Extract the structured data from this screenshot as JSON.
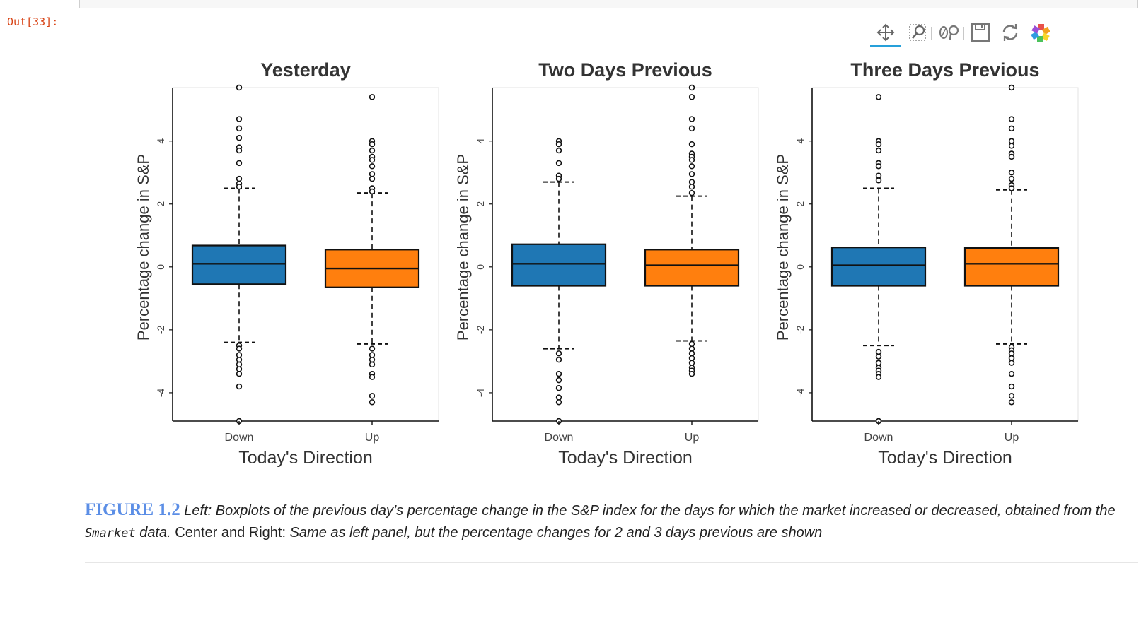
{
  "notebook": {
    "prompt": "Out[33]:"
  },
  "toolbar": {
    "tools": [
      {
        "name": "pan-tool-button",
        "icon": "pan-icon",
        "active": true
      },
      {
        "name": "box-zoom-tool-button",
        "icon": "box-zoom-icon",
        "active": false
      },
      {
        "name": "wheel-zoom-tool-button",
        "icon": "wheel-zoom-icon",
        "active": false
      },
      {
        "name": "save-tool-button",
        "icon": "save-icon",
        "active": false
      },
      {
        "name": "reset-tool-button",
        "icon": "reset-icon",
        "active": false
      },
      {
        "name": "bokeh-logo-button",
        "icon": "bokeh-logo-icon",
        "active": false
      }
    ]
  },
  "colors": {
    "down": "#1f77b4",
    "up": "#ff7f0e",
    "caption_label": "#5b8ee6",
    "prompt": "#d84315"
  },
  "chart_data": [
    {
      "type": "box",
      "title": "Yesterday",
      "xlabel": "Today's Direction",
      "ylabel": "Percentage change in S&P",
      "ylim": [
        -4.9,
        5.7
      ],
      "yticks": [
        "4",
        "2",
        "0",
        "-2",
        "-4"
      ],
      "yticks_values": [
        4,
        2,
        0,
        -2,
        -4
      ],
      "categories": [
        "Down",
        "Up"
      ],
      "boxes": [
        {
          "category": "Down",
          "q1": -0.55,
          "median": 0.1,
          "q3": 0.68,
          "whisker_low": -2.4,
          "whisker_high": 2.5,
          "outliers": [
            5.7,
            4.7,
            4.4,
            4.1,
            3.8,
            3.7,
            3.3,
            2.8,
            2.65,
            2.55,
            -2.5,
            -2.6,
            -2.8,
            -2.95,
            -3.1,
            -3.25,
            -3.4,
            -3.8,
            -4.9
          ]
        },
        {
          "category": "Up",
          "q1": -0.65,
          "median": -0.05,
          "q3": 0.55,
          "whisker_low": -2.45,
          "whisker_high": 2.35,
          "outliers": [
            5.4,
            4.0,
            3.9,
            3.7,
            3.5,
            3.4,
            3.2,
            2.95,
            2.8,
            2.5,
            2.4,
            -2.6,
            -2.8,
            -2.95,
            -3.1,
            -3.4,
            -3.5,
            -4.1,
            -4.3
          ]
        }
      ]
    },
    {
      "type": "box",
      "title": "Two Days Previous",
      "xlabel": "Today's Direction",
      "ylabel": "Percentage change in S&P",
      "ylim": [
        -4.9,
        5.7
      ],
      "yticks": [
        "4",
        "2",
        "0",
        "-2",
        "-4"
      ],
      "yticks_values": [
        4,
        2,
        0,
        -2,
        -4
      ],
      "categories": [
        "Down",
        "Up"
      ],
      "boxes": [
        {
          "category": "Down",
          "q1": -0.6,
          "median": 0.1,
          "q3": 0.72,
          "whisker_low": -2.6,
          "whisker_high": 2.7,
          "outliers": [
            4.0,
            3.9,
            3.7,
            3.3,
            2.9,
            2.8,
            -2.75,
            -2.95,
            -3.4,
            -3.6,
            -3.85,
            -4.15,
            -4.3,
            -4.9
          ]
        },
        {
          "category": "Up",
          "q1": -0.6,
          "median": 0.05,
          "q3": 0.55,
          "whisker_low": -2.35,
          "whisker_high": 2.25,
          "outliers": [
            5.7,
            5.4,
            4.7,
            4.4,
            3.9,
            3.6,
            3.5,
            3.4,
            3.2,
            2.95,
            2.7,
            2.55,
            2.35,
            -2.45,
            -2.6,
            -2.75,
            -2.9,
            -3.05,
            -3.2,
            -3.3,
            -3.4
          ]
        }
      ]
    },
    {
      "type": "box",
      "title": "Three Days Previous",
      "xlabel": "Today's Direction",
      "ylabel": "Percentage change in S&P",
      "ylim": [
        -4.9,
        5.7
      ],
      "yticks": [
        "4",
        "2",
        "0",
        "-2",
        "-4"
      ],
      "yticks_values": [
        4,
        2,
        0,
        -2,
        -4
      ],
      "categories": [
        "Down",
        "Up"
      ],
      "boxes": [
        {
          "category": "Down",
          "q1": -0.6,
          "median": 0.05,
          "q3": 0.62,
          "whisker_low": -2.5,
          "whisker_high": 2.5,
          "outliers": [
            5.4,
            4.0,
            3.9,
            3.7,
            3.3,
            3.2,
            2.9,
            2.75,
            -2.7,
            -2.85,
            -3.05,
            -3.2,
            -3.3,
            -3.4,
            -3.5,
            -4.9
          ]
        },
        {
          "category": "Up",
          "q1": -0.6,
          "median": 0.1,
          "q3": 0.6,
          "whisker_low": -2.45,
          "whisker_high": 2.45,
          "outliers": [
            5.7,
            4.7,
            4.4,
            4.0,
            3.85,
            3.6,
            3.5,
            3.0,
            2.8,
            2.6,
            2.5,
            -2.55,
            -2.65,
            -2.75,
            -2.9,
            -3.05,
            -3.4,
            -3.8,
            -4.1,
            -4.3
          ]
        }
      ]
    }
  ],
  "caption": {
    "label": "FIGURE 1.2",
    "left_label": "Left:",
    "part1": " Boxplots of the previous day’s percentage change in the S&P index for the days for which the market increased or decreased, obtained from the ",
    "dataset": "Smarket",
    "part2": " data.",
    "center_right_label": " Center and Right: ",
    "part3": "Same as left panel, but the percentage changes for 2 and 3 days previous are shown"
  }
}
